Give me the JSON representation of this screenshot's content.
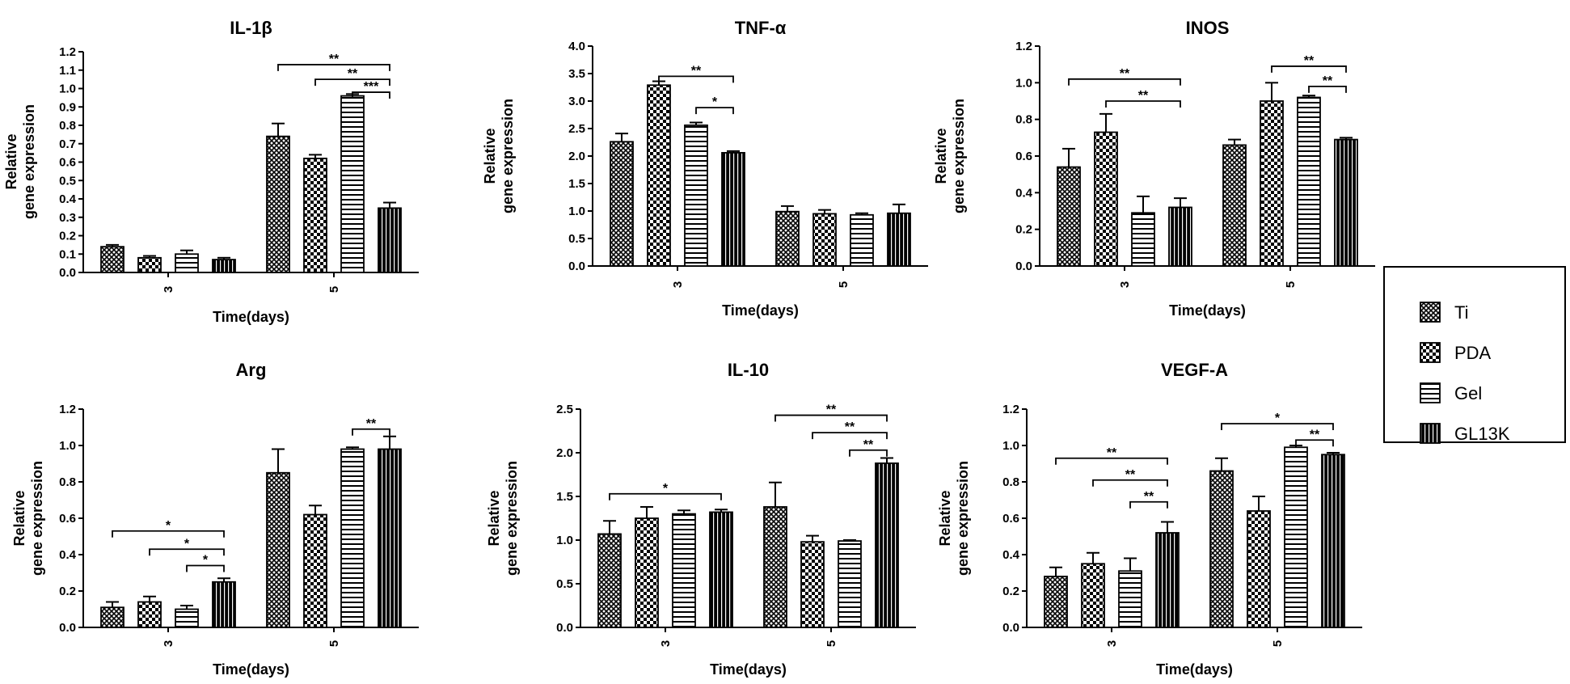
{
  "chart_data": [
    {
      "type": "bar",
      "title": "IL-1β",
      "xlabel": "Time(days)",
      "ylabel_lines": [
        "Relative",
        "gene expression"
      ],
      "categories": [
        "3",
        "5"
      ],
      "ylim": [
        0,
        1.2
      ],
      "yticks": [
        0,
        0.1,
        0.2,
        0.3,
        0.4,
        0.5,
        0.6,
        0.7,
        0.8,
        0.9,
        1.0,
        1.1,
        1.2
      ],
      "ytick_labels": [
        "0.0",
        "0.1",
        "0.2",
        "0.3",
        "0.4",
        "0.5",
        "0.6",
        "0.7",
        "0.8",
        "0.9",
        "1.0",
        "1.1",
        "1.2"
      ],
      "series": [
        {
          "name": "Ti",
          "values": [
            0.14,
            0.74
          ],
          "errors": [
            0.01,
            0.07
          ]
        },
        {
          "name": "PDA",
          "values": [
            0.08,
            0.62
          ],
          "errors": [
            0.01,
            0.02
          ]
        },
        {
          "name": "Gel",
          "values": [
            0.1,
            0.96
          ],
          "errors": [
            0.02,
            0.01
          ]
        },
        {
          "name": "GL13K",
          "values": [
            0.07,
            0.35
          ],
          "errors": [
            0.01,
            0.03
          ]
        }
      ],
      "significance": [
        {
          "group": 1,
          "from": 0,
          "to": 3,
          "y": 1.13,
          "label": "**"
        },
        {
          "group": 1,
          "from": 1,
          "to": 3,
          "y": 1.05,
          "label": "**"
        },
        {
          "group": 1,
          "from": 2,
          "to": 3,
          "y": 0.98,
          "label": "***"
        }
      ]
    },
    {
      "type": "bar",
      "title": "TNF-α",
      "xlabel": "Time(days)",
      "ylabel_lines": [
        "Relative",
        "gene expression"
      ],
      "categories": [
        "3",
        "5"
      ],
      "ylim": [
        0,
        4.0
      ],
      "yticks": [
        0,
        0.5,
        1.0,
        1.5,
        2.0,
        2.5,
        3.0,
        3.5,
        4.0
      ],
      "ytick_labels": [
        "0.0",
        "0.5",
        "1.0",
        "1.5",
        "2.0",
        "2.5",
        "3.0",
        "3.5",
        "4.0"
      ],
      "series": [
        {
          "name": "Ti",
          "values": [
            2.26,
            0.99
          ],
          "errors": [
            0.15,
            0.1
          ]
        },
        {
          "name": "PDA",
          "values": [
            3.29,
            0.95
          ],
          "errors": [
            0.07,
            0.07
          ]
        },
        {
          "name": "Gel",
          "values": [
            2.56,
            0.93
          ],
          "errors": [
            0.05,
            0.03
          ]
        },
        {
          "name": "GL13K",
          "values": [
            2.06,
            0.96
          ],
          "errors": [
            0.03,
            0.16
          ]
        }
      ],
      "significance": [
        {
          "group": 0,
          "from": 1,
          "to": 3,
          "y": 3.45,
          "label": "**"
        },
        {
          "group": 0,
          "from": 2,
          "to": 3,
          "y": 2.88,
          "label": "*"
        }
      ]
    },
    {
      "type": "bar",
      "title": "INOS",
      "xlabel": "Time(days)",
      "ylabel_lines": [
        "Relative",
        "gene expression"
      ],
      "categories": [
        "3",
        "5"
      ],
      "ylim": [
        0,
        1.2
      ],
      "yticks": [
        0,
        0.2,
        0.4,
        0.6,
        0.8,
        1.0,
        1.2
      ],
      "ytick_labels": [
        "0.0",
        "0.2",
        "0.4",
        "0.6",
        "0.8",
        "1.0",
        "1.2"
      ],
      "series": [
        {
          "name": "Ti",
          "values": [
            0.54,
            0.66
          ],
          "errors": [
            0.1,
            0.03
          ]
        },
        {
          "name": "PDA",
          "values": [
            0.73,
            0.9
          ],
          "errors": [
            0.1,
            0.1
          ]
        },
        {
          "name": "Gel",
          "values": [
            0.29,
            0.92
          ],
          "errors": [
            0.09,
            0.01
          ]
        },
        {
          "name": "GL13K",
          "values": [
            0.32,
            0.69
          ],
          "errors": [
            0.05,
            0.01
          ]
        }
      ],
      "significance": [
        {
          "group": 0,
          "from": 0,
          "to": 3,
          "y": 1.02,
          "label": "**"
        },
        {
          "group": 0,
          "from": 1,
          "to": 3,
          "y": 0.9,
          "label": "**"
        },
        {
          "group": 1,
          "from": 1,
          "to": 3,
          "y": 1.09,
          "label": "**"
        },
        {
          "group": 1,
          "from": 2,
          "to": 3,
          "y": 0.98,
          "label": "**"
        }
      ]
    },
    {
      "type": "bar",
      "title": "Arg",
      "xlabel": "Time(days)",
      "ylabel_lines": [
        "Relative",
        "gene expression"
      ],
      "categories": [
        "3",
        "5"
      ],
      "ylim": [
        0,
        1.2
      ],
      "yticks": [
        0,
        0.2,
        0.4,
        0.6,
        0.8,
        1.0,
        1.2
      ],
      "ytick_labels": [
        "0.0",
        "0.2",
        "0.4",
        "0.6",
        "0.8",
        "1.0",
        "1.2"
      ],
      "series": [
        {
          "name": "Ti",
          "values": [
            0.11,
            0.85
          ],
          "errors": [
            0.03,
            0.13
          ]
        },
        {
          "name": "PDA",
          "values": [
            0.14,
            0.62
          ],
          "errors": [
            0.03,
            0.05
          ]
        },
        {
          "name": "Gel",
          "values": [
            0.1,
            0.98
          ],
          "errors": [
            0.02,
            0.01
          ]
        },
        {
          "name": "GL13K",
          "values": [
            0.25,
            0.98
          ],
          "errors": [
            0.02,
            0.07
          ]
        }
      ],
      "significance": [
        {
          "group": 0,
          "from": 0,
          "to": 3,
          "y": 0.53,
          "label": "*"
        },
        {
          "group": 0,
          "from": 1,
          "to": 3,
          "y": 0.43,
          "label": "*"
        },
        {
          "group": 0,
          "from": 2,
          "to": 3,
          "y": 0.34,
          "label": "*"
        },
        {
          "group": 1,
          "from": 2,
          "to": 3,
          "y": 1.09,
          "label": "**"
        }
      ]
    },
    {
      "type": "bar",
      "title": "IL-10",
      "xlabel": "Time(days)",
      "ylabel_lines": [
        "Relative",
        "gene expression"
      ],
      "categories": [
        "3",
        "5"
      ],
      "ylim": [
        0,
        2.5
      ],
      "yticks": [
        0,
        0.5,
        1.0,
        1.5,
        2.0,
        2.5
      ],
      "ytick_labels": [
        "0.0",
        "0.5",
        "1.0",
        "1.5",
        "2.0",
        "2.5"
      ],
      "series": [
        {
          "name": "Ti",
          "values": [
            1.07,
            1.38
          ],
          "errors": [
            0.15,
            0.28
          ]
        },
        {
          "name": "PDA",
          "values": [
            1.25,
            0.98
          ],
          "errors": [
            0.13,
            0.07
          ]
        },
        {
          "name": "Gel",
          "values": [
            1.3,
            0.99
          ],
          "errors": [
            0.04,
            0.01
          ]
        },
        {
          "name": "GL13K",
          "values": [
            1.32,
            1.88
          ],
          "errors": [
            0.03,
            0.06
          ]
        }
      ],
      "significance": [
        {
          "group": 0,
          "from": 0,
          "to": 3,
          "y": 1.53,
          "label": "*"
        },
        {
          "group": 1,
          "from": 0,
          "to": 3,
          "y": 2.43,
          "label": "**"
        },
        {
          "group": 1,
          "from": 1,
          "to": 3,
          "y": 2.23,
          "label": "**"
        },
        {
          "group": 1,
          "from": 2,
          "to": 3,
          "y": 2.03,
          "label": "**"
        }
      ]
    },
    {
      "type": "bar",
      "title": "VEGF-A",
      "xlabel": "Time(days)",
      "ylabel_lines": [
        "Relative",
        "gene expression"
      ],
      "categories": [
        "3",
        "5"
      ],
      "ylim": [
        0,
        1.2
      ],
      "yticks": [
        0,
        0.2,
        0.4,
        0.6,
        0.8,
        1.0,
        1.2
      ],
      "ytick_labels": [
        "0.0",
        "0.2",
        "0.4",
        "0.6",
        "0.8",
        "1.0",
        "1.2"
      ],
      "series": [
        {
          "name": "Ti",
          "values": [
            0.28,
            0.86
          ],
          "errors": [
            0.05,
            0.07
          ]
        },
        {
          "name": "PDA",
          "values": [
            0.35,
            0.64
          ],
          "errors": [
            0.06,
            0.08
          ]
        },
        {
          "name": "Gel",
          "values": [
            0.31,
            0.99
          ],
          "errors": [
            0.07,
            0.01
          ]
        },
        {
          "name": "GL13K",
          "values": [
            0.52,
            0.95
          ],
          "errors": [
            0.06,
            0.01
          ]
        }
      ],
      "significance": [
        {
          "group": 0,
          "from": 0,
          "to": 3,
          "y": 0.93,
          "label": "**"
        },
        {
          "group": 0,
          "from": 1,
          "to": 3,
          "y": 0.81,
          "label": "**"
        },
        {
          "group": 0,
          "from": 2,
          "to": 3,
          "y": 0.69,
          "label": "**"
        },
        {
          "group": 1,
          "from": 0,
          "to": 3,
          "y": 1.12,
          "label": "*"
        },
        {
          "group": 1,
          "from": 2,
          "to": 3,
          "y": 1.03,
          "label": "**"
        }
      ]
    }
  ],
  "legend": {
    "placement": "right",
    "items": [
      {
        "name": "Ti",
        "pattern": "dense-crosshatch"
      },
      {
        "name": "PDA",
        "pattern": "checkerboard"
      },
      {
        "name": "Gel",
        "pattern": "horizontal-stripes"
      },
      {
        "name": "GL13K",
        "pattern": "vertical-stripes"
      }
    ]
  },
  "colors": {
    "ink": "#000000",
    "background": "#ffffff"
  }
}
